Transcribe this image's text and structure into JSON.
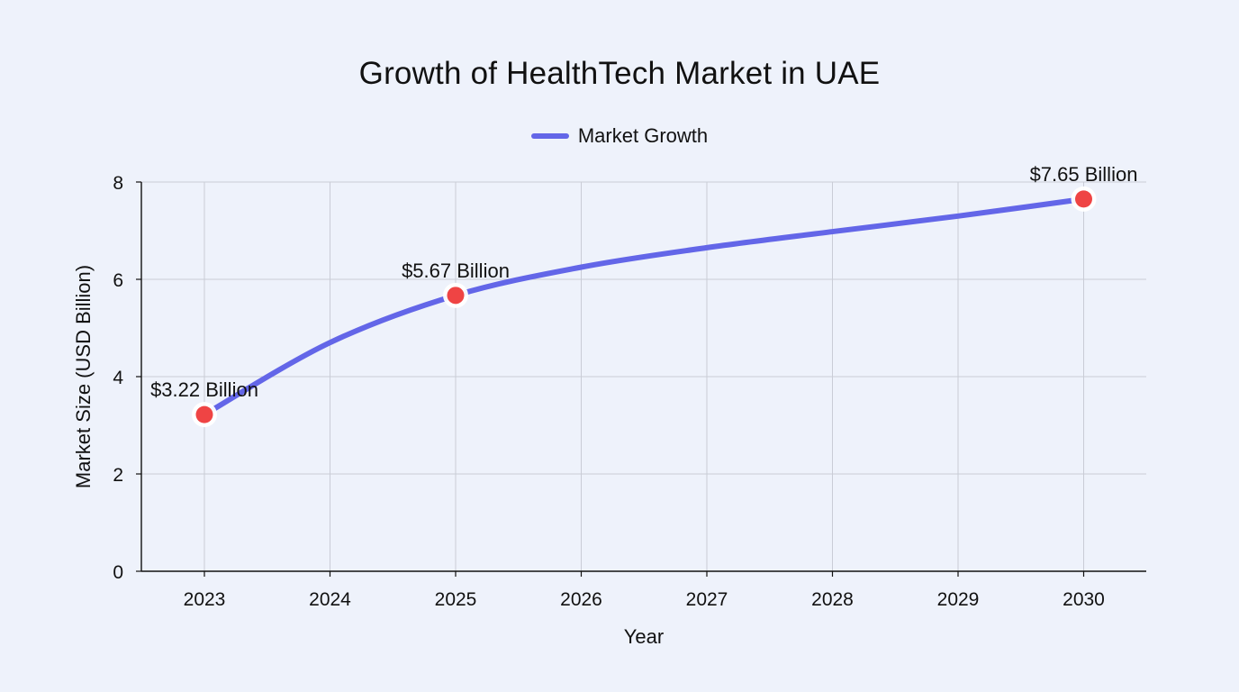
{
  "chart_data": {
    "type": "line",
    "title": "Growth of HealthTech Market in UAE",
    "xlabel": "Year",
    "ylabel": "Market Size (USD Billion)",
    "x": [
      "2023",
      "2024",
      "2025",
      "2026",
      "2027",
      "2028",
      "2029",
      "2030"
    ],
    "ylim": [
      0,
      8
    ],
    "yticks": [
      "0",
      "2",
      "4",
      "6",
      "8"
    ],
    "grid": true,
    "legend": "top-center",
    "series": [
      {
        "name": "Market Growth",
        "color": "#6366e8",
        "values": [
          3.22,
          4.7,
          5.67,
          6.25,
          6.65,
          6.98,
          7.3,
          7.65
        ]
      }
    ],
    "points": [
      {
        "x": "2023",
        "y": 3.22,
        "label": "$3.22 Billion"
      },
      {
        "x": "2025",
        "y": 5.67,
        "label": "$5.67 Billion"
      },
      {
        "x": "2030",
        "y": 7.65,
        "label": "$7.65 Billion"
      }
    ],
    "marker_color": "#ef4444"
  }
}
